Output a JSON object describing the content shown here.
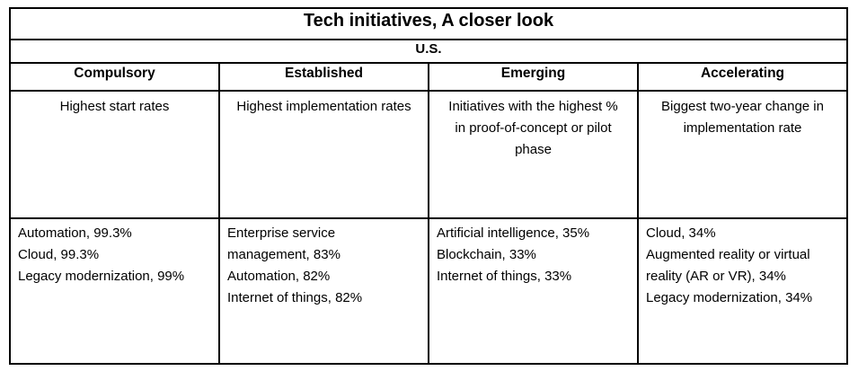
{
  "table": {
    "title": "Tech initiatives, A closer look",
    "subtitle": "U.S.",
    "columns": [
      {
        "header": "Compulsory",
        "description": "Highest start rates",
        "items": [
          "Automation, 99.3%",
          "Cloud, 99.3%",
          "Legacy modernization, 99%"
        ]
      },
      {
        "header": "Established",
        "description": "Highest implementation rates",
        "items": [
          "Enterprise service management, 83%",
          "Automation, 82%",
          "Internet of things, 82%"
        ]
      },
      {
        "header": "Emerging",
        "description": "Initiatives with the highest % in proof-of-concept or pilot phase",
        "items": [
          "Artificial intelligence, 35%",
          "Blockchain, 33%",
          "Internet of things, 33%"
        ]
      },
      {
        "header": "Accelerating",
        "description": "Biggest two-year change in implementation rate",
        "items": [
          "Cloud, 34%",
          "Augmented reality or virtual reality (AR or VR), 34%",
          "Legacy modernization, 34%"
        ]
      }
    ],
    "colors": {
      "border": "#000000",
      "text": "#000000",
      "background": "#ffffff"
    }
  }
}
